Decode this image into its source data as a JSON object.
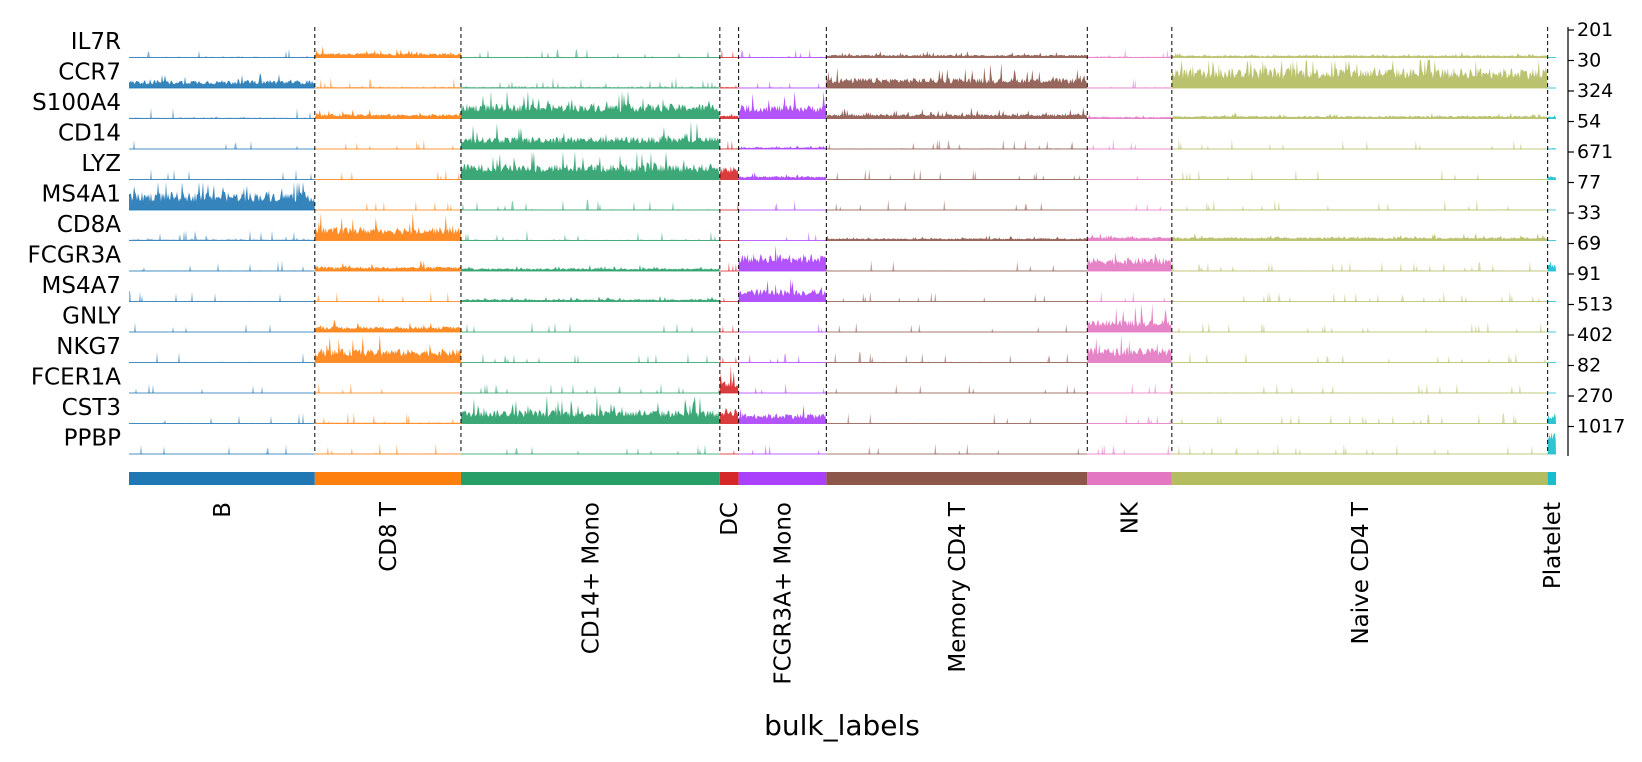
{
  "chart_data": {
    "type": "tracksplot",
    "xlabel": "bulk_labels",
    "genes": [
      "IL7R",
      "CCR7",
      "S100A4",
      "CD14",
      "LYZ",
      "MS4A1",
      "CD8A",
      "FCGR3A",
      "MS4A7",
      "GNLY",
      "NKG7",
      "FCER1A",
      "CST3",
      "PPBP"
    ],
    "max_labels": [
      "201",
      "30",
      "324",
      "54",
      "671",
      "77",
      "33",
      "69",
      "91",
      "513",
      "402",
      "82",
      "270",
      "1017"
    ],
    "groups": [
      {
        "name": "B",
        "n_cells": 178,
        "color": "#1f77b4"
      },
      {
        "name": "CD8 T",
        "n_cells": 140,
        "color": "#ff7f0e"
      },
      {
        "name": "CD14+ Mono",
        "n_cells": 248,
        "color": "#279e68"
      },
      {
        "name": "DC",
        "n_cells": 18,
        "color": "#d62728"
      },
      {
        "name": "FCGR3A+ Mono",
        "n_cells": 84,
        "color": "#aa40fc"
      },
      {
        "name": "Memory CD4 T",
        "n_cells": 250,
        "color": "#8c564b"
      },
      {
        "name": "NK",
        "n_cells": 81,
        "color": "#e377c2"
      },
      {
        "name": "Naive CD4 T",
        "n_cells": 360,
        "color": "#b5bd61"
      },
      {
        "name": "Platelet",
        "n_cells": 8,
        "color": "#17becf"
      }
    ],
    "mean_expression": [
      [
        0.03,
        0.2,
        0.02,
        0.02,
        0.03,
        0.12,
        0.04,
        0.1,
        0.0
      ],
      [
        0.35,
        0.05,
        0.05,
        0.05,
        0.02,
        0.45,
        0.03,
        0.9,
        0.0
      ],
      [
        0.04,
        0.2,
        0.65,
        0.15,
        0.6,
        0.2,
        0.08,
        0.12,
        0.1
      ],
      [
        0.0,
        0.0,
        0.55,
        0.03,
        0.08,
        0.02,
        0.0,
        0.0,
        0.05
      ],
      [
        0.02,
        0.02,
        0.7,
        0.6,
        0.15,
        0.01,
        0.01,
        0.01,
        0.15
      ],
      [
        0.8,
        0.0,
        0.02,
        0.0,
        0.0,
        0.0,
        0.0,
        0.02,
        0.0
      ],
      [
        0.05,
        0.6,
        0.03,
        0.0,
        0.0,
        0.1,
        0.15,
        0.15,
        0.0
      ],
      [
        0.02,
        0.2,
        0.12,
        0.0,
        0.75,
        0.01,
        0.6,
        0.02,
        0.3
      ],
      [
        0.02,
        0.01,
        0.1,
        0.0,
        0.55,
        0.0,
        0.0,
        0.0,
        0.0
      ],
      [
        0.0,
        0.25,
        0.0,
        0.0,
        0.0,
        0.0,
        0.55,
        0.01,
        0.0
      ],
      [
        0.02,
        0.6,
        0.0,
        0.0,
        0.0,
        0.02,
        0.65,
        0.01,
        0.0
      ],
      [
        0.0,
        0.0,
        0.0,
        0.55,
        0.0,
        0.0,
        0.0,
        0.02,
        0.0
      ],
      [
        0.02,
        0.05,
        0.6,
        0.7,
        0.45,
        0.01,
        0.01,
        0.01,
        0.4
      ],
      [
        0.0,
        0.02,
        0.0,
        0.0,
        0.0,
        0.0,
        0.0,
        0.0,
        0.95
      ]
    ]
  }
}
